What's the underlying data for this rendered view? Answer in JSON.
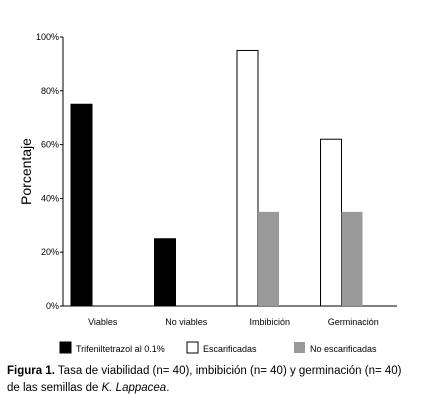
{
  "chart_data": {
    "type": "bar",
    "categories": [
      "Viables",
      "No viables",
      "Imbibición",
      "Germinación"
    ],
    "series": [
      {
        "name": "Trifeniltetrazol al 0.1%",
        "values": [
          75,
          25,
          null,
          null
        ],
        "color": "#000000"
      },
      {
        "name": "Escarificadas",
        "values": [
          null,
          null,
          95,
          62
        ],
        "color": "#ffffff"
      },
      {
        "name": "No escarificadas",
        "values": [
          null,
          null,
          35,
          35
        ],
        "color": "#999999"
      }
    ],
    "ylabel": "Porcentaje",
    "xlabel": "",
    "ylim": [
      0,
      100
    ],
    "yticks": [
      0,
      20,
      40,
      60,
      80,
      100
    ],
    "ytick_labels": [
      "0%",
      "20%",
      "40%",
      "60%",
      "80%",
      "100%"
    ],
    "legend_placement": "bottom",
    "grid": false
  },
  "caption": {
    "label": "Figura 1.",
    "text_a": " Tasa de viabilidad (n= 40), imbibición (n= 40) y germinación (n= 40) de las semillas de ",
    "species": "K. Lappacea",
    "text_b": "."
  }
}
